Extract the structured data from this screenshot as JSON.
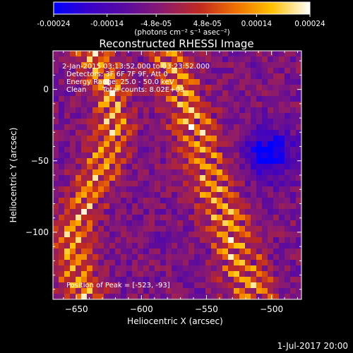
{
  "chart_data": {
    "type": "heatmap",
    "title": "Reconstructed RHESSI Image",
    "xlabel": "Heliocentric X (arcsec)",
    "ylabel": "Heliocentric Y (arcsec)",
    "xlim": [
      -668,
      -477
    ],
    "ylim": [
      -147,
      27
    ],
    "xticks": [
      -650,
      -600,
      -550,
      -500
    ],
    "yticks": [
      0,
      -50,
      -100
    ],
    "colorbar": {
      "range": [
        -0.00024,
        0.00024
      ],
      "ticks": [
        "-0.00024",
        "-0.00014",
        "-4.8e-05",
        "4.8e-05",
        "0.00014",
        "0.00024"
      ],
      "tick_values": [
        -0.00024,
        -0.00014,
        -4.8e-05,
        4.8e-05,
        0.00014,
        0.00024
      ],
      "units": "(photons cm⁻² s⁻¹ asec⁻²)",
      "colormap": [
        "#0000ff",
        "#3a00c8",
        "#5a0aa0",
        "#8a1a70",
        "#c02a20",
        "#f07000",
        "#ffc000",
        "#ffffff"
      ]
    },
    "annotations": {
      "time_range": "2-Jan-2015 03:13:52.000 to 03:23:52.000",
      "detectors": "Detectors: 3F 6F 7F 9F, Att 0",
      "energy_range": "Energy Range: 25.0 - 50.0 keV",
      "method": "Clean",
      "total_counts": "Total counts: 8.02E+03",
      "peak": "Position of Peak = [-523, -93]"
    },
    "peak": {
      "x": -523,
      "y": -93
    }
  },
  "footer": {
    "timestamp": "1-Jul-2017 20:00"
  }
}
